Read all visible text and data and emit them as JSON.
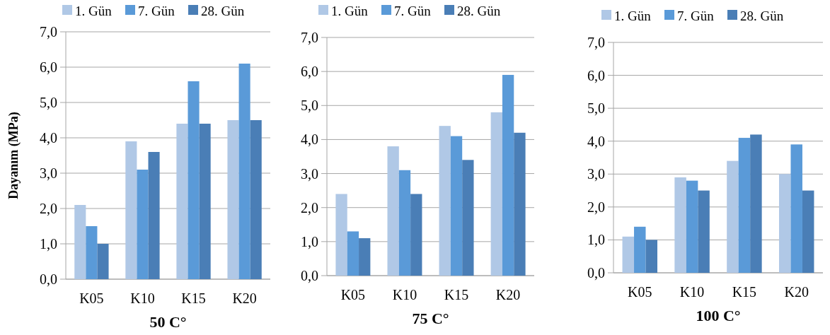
{
  "chart_data": [
    {
      "type": "bar",
      "xlabel": "50  C°",
      "ylabel": "Dayanım (MPa)",
      "categories": [
        "K05",
        "K10",
        "K15",
        "K20"
      ],
      "series": [
        {
          "name": "1. Gün",
          "color": "#b0c8e6",
          "values": [
            2.1,
            3.9,
            4.4,
            4.5
          ]
        },
        {
          "name": "7. Gün",
          "color": "#5a9ad8",
          "values": [
            1.5,
            3.1,
            5.6,
            6.1
          ]
        },
        {
          "name": "28. Gün",
          "color": "#4a7eb6",
          "values": [
            1.0,
            3.6,
            4.4,
            4.5
          ]
        }
      ],
      "ylim": [
        0,
        7
      ],
      "yticks": [
        {
          "value": 0,
          "label": "0,0"
        },
        {
          "value": 1,
          "label": "1,0"
        },
        {
          "value": 2,
          "label": "2,0"
        },
        {
          "value": 3,
          "label": "3,0"
        },
        {
          "value": 4,
          "label": "4,0"
        },
        {
          "value": 5,
          "label": "5,0"
        },
        {
          "value": 6,
          "label": "6,0"
        },
        {
          "value": 7,
          "label": "7,0"
        }
      ],
      "grid": "y",
      "legend": "top"
    },
    {
      "type": "bar",
      "xlabel": "75 C°",
      "categories": [
        "K05",
        "K10",
        "K15",
        "K20"
      ],
      "series": [
        {
          "name": "1. Gün",
          "color": "#b0c8e6",
          "values": [
            2.4,
            3.8,
            4.4,
            4.8
          ]
        },
        {
          "name": "7. Gün",
          "color": "#5a9ad8",
          "values": [
            1.3,
            3.1,
            4.1,
            5.9
          ]
        },
        {
          "name": "28. Gün",
          "color": "#4a7eb6",
          "values": [
            1.1,
            2.4,
            3.4,
            4.2
          ]
        }
      ],
      "ylim": [
        0,
        7
      ],
      "yticks": [
        {
          "value": 0,
          "label": "0,0"
        },
        {
          "value": 1,
          "label": "1,0"
        },
        {
          "value": 2,
          "label": "2,0"
        },
        {
          "value": 3,
          "label": "3,0"
        },
        {
          "value": 4,
          "label": "4,0"
        },
        {
          "value": 5,
          "label": "5,0"
        },
        {
          "value": 6,
          "label": "6,0"
        },
        {
          "value": 7,
          "label": "7,0"
        }
      ],
      "grid": "y",
      "legend": "top"
    },
    {
      "type": "bar",
      "xlabel": "100 C°",
      "categories": [
        "K05",
        "K10",
        "K15",
        "K20"
      ],
      "series": [
        {
          "name": "1. Gün",
          "color": "#b0c8e6",
          "values": [
            1.1,
            2.9,
            3.4,
            3.0
          ]
        },
        {
          "name": "7. Gün",
          "color": "#5a9ad8",
          "values": [
            1.4,
            2.8,
            4.1,
            3.9
          ]
        },
        {
          "name": "28. Gün",
          "color": "#4a7eb6",
          "values": [
            1.0,
            2.5,
            4.2,
            2.5
          ]
        }
      ],
      "ylim": [
        0,
        7
      ],
      "yticks": [
        {
          "value": 0,
          "label": "0,0"
        },
        {
          "value": 1,
          "label": "1,0"
        },
        {
          "value": 2,
          "label": "2,0"
        },
        {
          "value": 3,
          "label": "3,0"
        },
        {
          "value": 4,
          "label": "4,0"
        },
        {
          "value": 5,
          "label": "5,0"
        },
        {
          "value": 6,
          "label": "6,0"
        },
        {
          "value": 7,
          "label": "7,0"
        }
      ],
      "grid": "y",
      "legend": "top"
    }
  ]
}
